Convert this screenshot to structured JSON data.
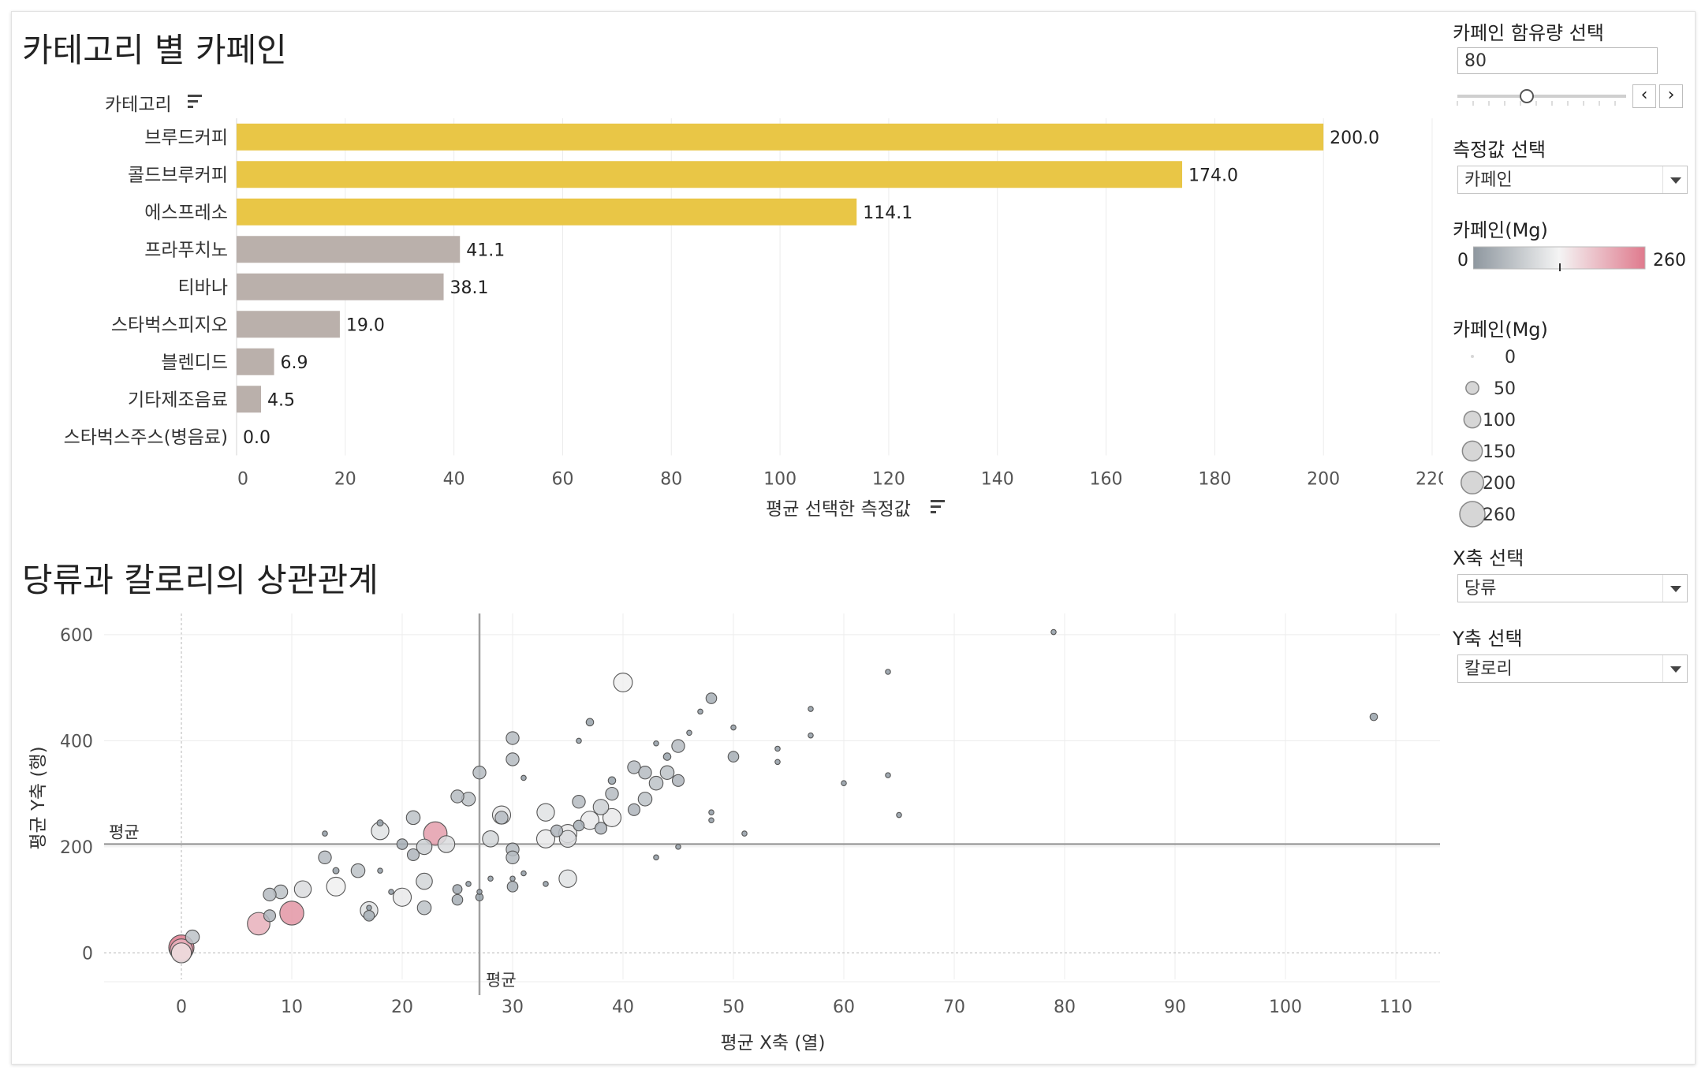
{
  "bar_section": {
    "title": "카테고리 별 카페인",
    "category_header": "카테고리",
    "x_axis_title": "평균 선택한 측정값",
    "chart_data": {
      "type": "bar",
      "categories": [
        "브루드커피",
        "콜드브루커피",
        "에스프레소",
        "프라푸치노",
        "티바나",
        "스타벅스피지오",
        "블렌디드",
        "기타제조음료",
        "스타벅스주스(병음료)"
      ],
      "values": [
        200.0,
        174.0,
        114.1,
        41.1,
        38.1,
        19.0,
        6.9,
        4.5,
        0.0
      ],
      "value_labels": [
        "200.0",
        "174.0",
        "114.1",
        "41.1",
        "38.1",
        "19.0",
        "6.9",
        "4.5",
        "0.0"
      ],
      "highlight": [
        true,
        true,
        true,
        false,
        false,
        false,
        false,
        false,
        false
      ],
      "xlim": [
        0,
        220
      ],
      "ticks": [
        "0",
        "20",
        "40",
        "60",
        "80",
        "100",
        "120",
        "140",
        "160",
        "180",
        "200",
        "220"
      ],
      "highlight_color": "#e9c646",
      "base_color": "#bab0ab"
    }
  },
  "scatter_section": {
    "title": "당류과 칼로리의 상관관계",
    "x_axis_title": "평균 X축 (열)",
    "y_axis_title": "평균 Y축 (행)",
    "avg_label_x": "평균",
    "avg_label_y": "평균",
    "chart_data": {
      "type": "scatter",
      "xlim": [
        -7,
        114
      ],
      "ylim": [
        -50,
        640
      ],
      "x_ticks": [
        "0",
        "10",
        "20",
        "30",
        "40",
        "50",
        "60",
        "70",
        "80",
        "90",
        "100",
        "110"
      ],
      "y_ticks": [
        "0",
        "200",
        "400",
        "600"
      ],
      "mean_x": 27,
      "mean_y": 205,
      "points": [
        [
          0,
          10,
          260
        ],
        [
          0,
          5,
          200
        ],
        [
          0,
          0,
          150
        ],
        [
          1,
          30,
          60
        ],
        [
          7,
          55,
          200
        ],
        [
          8,
          70,
          40
        ],
        [
          8,
          110,
          50
        ],
        [
          9,
          115,
          60
        ],
        [
          10,
          75,
          230
        ],
        [
          11,
          120,
          100
        ],
        [
          13,
          180,
          50
        ],
        [
          13,
          225,
          2
        ],
        [
          14,
          125,
          130
        ],
        [
          14,
          155,
          5
        ],
        [
          16,
          155,
          60
        ],
        [
          17,
          80,
          110
        ],
        [
          17,
          70,
          30
        ],
        [
          17,
          85,
          2
        ],
        [
          18,
          230,
          110
        ],
        [
          18,
          245,
          5
        ],
        [
          18,
          155,
          2
        ],
        [
          19,
          115,
          2
        ],
        [
          20,
          105,
          120
        ],
        [
          20,
          205,
          30
        ],
        [
          21,
          185,
          40
        ],
        [
          21,
          255,
          60
        ],
        [
          22,
          85,
          60
        ],
        [
          22,
          200,
          80
        ],
        [
          22,
          135,
          90
        ],
        [
          23,
          225,
          220
        ],
        [
          24,
          205,
          100
        ],
        [
          25,
          295,
          50
        ],
        [
          25,
          100,
          30
        ],
        [
          25,
          120,
          20
        ],
        [
          26,
          290,
          60
        ],
        [
          26,
          130,
          2
        ],
        [
          27,
          105,
          10
        ],
        [
          27,
          340,
          50
        ],
        [
          27,
          115,
          2
        ],
        [
          28,
          215,
          90
        ],
        [
          28,
          140,
          2
        ],
        [
          29,
          260,
          120
        ],
        [
          29,
          255,
          50
        ],
        [
          30,
          405,
          50
        ],
        [
          30,
          365,
          50
        ],
        [
          30,
          125,
          30
        ],
        [
          30,
          195,
          50
        ],
        [
          30,
          180,
          50
        ],
        [
          30,
          140,
          2
        ],
        [
          31,
          330,
          2
        ],
        [
          31,
          150,
          2
        ],
        [
          33,
          265,
          110
        ],
        [
          33,
          215,
          120
        ],
        [
          33,
          130,
          2
        ],
        [
          34,
          230,
          40
        ],
        [
          35,
          225,
          120
        ],
        [
          35,
          215,
          100
        ],
        [
          35,
          140,
          110
        ],
        [
          36,
          240,
          30
        ],
        [
          36,
          285,
          50
        ],
        [
          36,
          400,
          2
        ],
        [
          37,
          435,
          10
        ],
        [
          37,
          250,
          120
        ],
        [
          38,
          275,
          80
        ],
        [
          38,
          235,
          40
        ],
        [
          39,
          255,
          120
        ],
        [
          39,
          300,
          50
        ],
        [
          39,
          325,
          10
        ],
        [
          40,
          510,
          130
        ],
        [
          41,
          270,
          40
        ],
        [
          41,
          350,
          50
        ],
        [
          42,
          290,
          60
        ],
        [
          42,
          340,
          50
        ],
        [
          43,
          320,
          60
        ],
        [
          43,
          180,
          2
        ],
        [
          43,
          395,
          2
        ],
        [
          44,
          370,
          10
        ],
        [
          44,
          340,
          60
        ],
        [
          45,
          390,
          50
        ],
        [
          45,
          325,
          40
        ],
        [
          45,
          200,
          2
        ],
        [
          46,
          415,
          2
        ],
        [
          47,
          455,
          2
        ],
        [
          48,
          480,
          30
        ],
        [
          48,
          265,
          2
        ],
        [
          48,
          250,
          2
        ],
        [
          50,
          370,
          30
        ],
        [
          50,
          425,
          2
        ],
        [
          51,
          225,
          2
        ],
        [
          54,
          385,
          2
        ],
        [
          54,
          360,
          2
        ],
        [
          57,
          460,
          2
        ],
        [
          57,
          410,
          2
        ],
        [
          60,
          320,
          2
        ],
        [
          64,
          530,
          2
        ],
        [
          64,
          335,
          2
        ],
        [
          65,
          260,
          2
        ],
        [
          79,
          605,
          2
        ],
        [
          108,
          445,
          10
        ]
      ],
      "size_max_value": 260,
      "color_low": "#909aa3",
      "color_mid": "#f0f0f0",
      "color_high": "#df7a8d"
    }
  },
  "controls": {
    "caffeine_select_label": "카페인 함유량 선택",
    "caffeine_value": "80",
    "prev_btn": "‹",
    "next_btn": "›",
    "measure_label": "측정값 선택",
    "measure_value": "카페인",
    "color_legend_title": "카페인(Mg)",
    "color_min": "0",
    "color_max": "260",
    "size_legend_title": "카페인(Mg)",
    "size_legend": [
      "0",
      "50",
      "100",
      "150",
      "200",
      "260"
    ],
    "x_select_label": "X축 선택",
    "x_select_value": "당류",
    "y_select_label": "Y축 선택",
    "y_select_value": "칼로리"
  }
}
